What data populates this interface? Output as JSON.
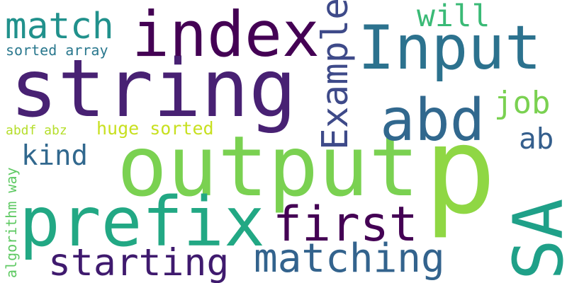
{
  "words": {
    "string": {
      "text": "string",
      "color": "#482173"
    },
    "output": {
      "text": "output",
      "color": "#7ad151"
    },
    "index": {
      "text": "index",
      "color": "#440154"
    },
    "input": {
      "text": "Input",
      "color": "#2c728e"
    },
    "prefix": {
      "text": "prefix",
      "color": "#22a884"
    },
    "p": {
      "text": "p",
      "color": "#8fd744"
    },
    "abd": {
      "text": "abd",
      "color": "#31688e"
    },
    "sa": {
      "text": "SA",
      "color": "#1fa088"
    },
    "first": {
      "text": "first",
      "color": "#440154"
    },
    "matching": {
      "text": "matching",
      "color": "#33638d"
    },
    "example": {
      "text": "Example",
      "color": "#3e4a89"
    },
    "starting": {
      "text": "starting",
      "color": "#3f1a6e"
    },
    "match": {
      "text": "match",
      "color": "#21918c"
    },
    "will": {
      "text": "will",
      "color": "#3aba76"
    },
    "job": {
      "text": "job",
      "color": "#7ad151"
    },
    "ab": {
      "text": "ab",
      "color": "#355f8d"
    },
    "kind": {
      "text": "kind",
      "color": "#31688e"
    },
    "huge_sorted": {
      "text": "huge sorted",
      "color": "#c8e020"
    },
    "sorted_array": {
      "text": "sorted array",
      "color": "#2a788e"
    },
    "abdf_abz": {
      "text": "abdf abz",
      "color": "#b5de2b"
    },
    "algorithm_way": {
      "text": "algorithm way",
      "color": "#5ec962"
    }
  }
}
